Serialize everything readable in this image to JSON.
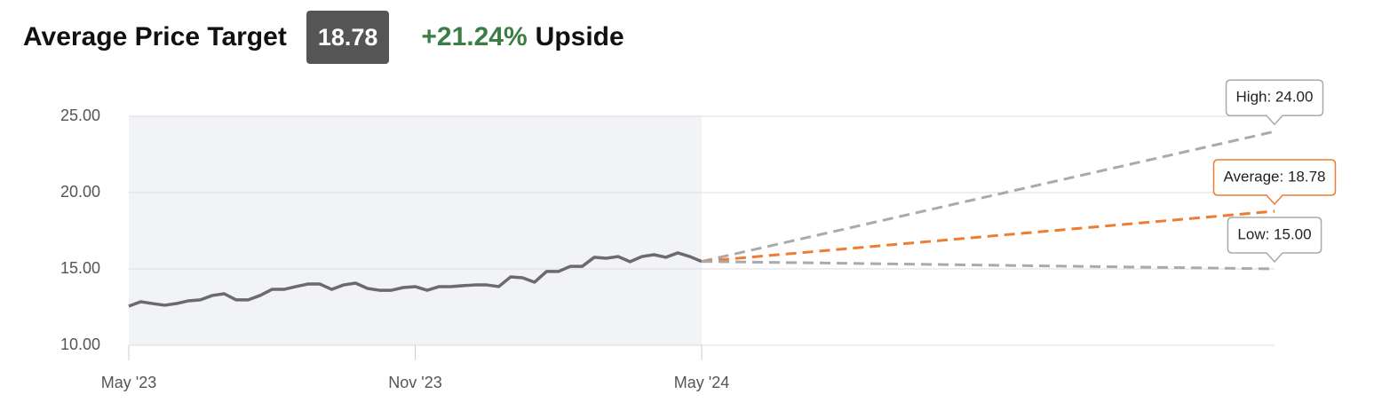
{
  "chart_data": {
    "type": "line",
    "title": "Average Price Target",
    "badge": 18.78,
    "upside_value": "+21.24%",
    "upside_label": "Upside",
    "xlim": [
      0,
      24
    ],
    "xticks": [
      {
        "value": 0,
        "label": "May '23"
      },
      {
        "value": 6,
        "label": "Nov '23"
      },
      {
        "value": 12,
        "label": "May '24"
      }
    ],
    "ylim": [
      10,
      25
    ],
    "yticks": [
      {
        "value": 10,
        "label": "10.00"
      },
      {
        "value": 15,
        "label": "15.00"
      },
      {
        "value": 20,
        "label": "20.00"
      },
      {
        "value": 25,
        "label": "25.00"
      }
    ],
    "grid": true,
    "series": [
      {
        "color": "#6b6b6b",
        "dashed": false,
        "x": [
          0,
          0.25,
          0.5,
          0.75,
          1,
          1.25,
          1.5,
          1.75,
          2,
          2.25,
          2.5,
          2.75,
          3,
          3.25,
          3.5,
          3.75,
          4,
          4.25,
          4.5,
          4.75,
          5,
          5.25,
          5.5,
          5.75,
          6,
          6.25,
          6.5,
          6.75,
          7,
          7.25,
          7.5,
          7.75,
          8,
          8.25,
          8.5,
          8.75,
          9,
          9.25,
          9.5,
          9.75,
          10,
          10.25,
          10.5,
          10.75,
          11,
          11.25,
          11.5,
          11.75,
          12
        ],
        "values": [
          12.56,
          12.85,
          12.73,
          12.62,
          12.73,
          12.91,
          12.97,
          13.26,
          13.37,
          12.97,
          12.97,
          13.26,
          13.66,
          13.66,
          13.84,
          14.01,
          14.01,
          13.66,
          13.95,
          14.07,
          13.72,
          13.6,
          13.6,
          13.78,
          13.84,
          13.6,
          13.84,
          13.84,
          13.9,
          13.95,
          13.95,
          13.84,
          14.48,
          14.42,
          14.13,
          14.83,
          14.83,
          15.17,
          15.17,
          15.76,
          15.7,
          15.81,
          15.47,
          15.81,
          15.93,
          15.76,
          16.05,
          15.81,
          15.49
        ]
      },
      {
        "color": "#aaaaaa",
        "dashed": true,
        "x": [
          12,
          24
        ],
        "values": [
          15.49,
          24
        ],
        "value_labels": [
          null,
          "High: 24.00"
        ]
      },
      {
        "color": "#ed7d31",
        "dashed": true,
        "x": [
          12,
          24
        ],
        "values": [
          15.49,
          18.78
        ],
        "value_labels": [
          null,
          "Average: 18.78"
        ]
      },
      {
        "color": "#aaaaaa",
        "dashed": true,
        "x": [
          12,
          24
        ],
        "values": [
          15.49,
          15
        ],
        "value_labels": [
          null,
          "Low: 15.00"
        ]
      }
    ]
  }
}
